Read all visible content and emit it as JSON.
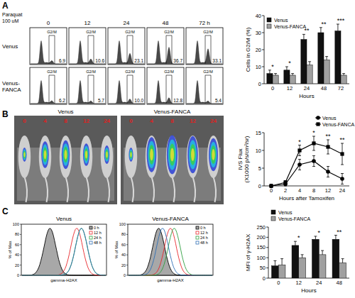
{
  "panels": [
    {
      "label": "A",
      "treatment": [
        "Paraquat",
        "100 uM"
      ],
      "columns": [
        "0",
        "12",
        "24",
        "48",
        "72 h"
      ],
      "gate_label": "G2/M",
      "rows": [
        {
          "name": "Venus",
          "percentages": [
            "6.9",
            "10.6",
            "23.1",
            "36.7",
            "33.1"
          ]
        },
        {
          "name": "Venus-FANCA",
          "percentages": [
            "6.2",
            "5.7",
            "10.0",
            "12.8",
            "5.4"
          ]
        }
      ]
    },
    {
      "label": "B",
      "groups": [
        {
          "name": "Venus",
          "time_labels": [
            "0",
            "4",
            "8",
            "12",
            "24"
          ]
        },
        {
          "name": "Venus-FANCA",
          "time_labels": [
            "0",
            "4",
            "8",
            "12",
            "24"
          ]
        }
      ]
    },
    {
      "label": "C",
      "groups": [
        {
          "name": "Venus"
        },
        {
          "name": "Venus-FANCA"
        }
      ],
      "x_label": "gamma-H2AX",
      "y_label": "% of Max",
      "yticks": [
        0,
        20,
        40,
        60,
        80,
        100
      ],
      "legend_entries": [
        {
          "name": "0 h",
          "color": "#000000"
        },
        {
          "name": "12 h",
          "color": "#e8262a"
        },
        {
          "name": "24 h",
          "color": "#2e9e3e"
        },
        {
          "name": "48 h",
          "color": "#2f6fb5"
        }
      ]
    }
  ],
  "chart_data": [
    {
      "type": "bar",
      "y_label": "Cells in G2/M (%)",
      "x_label": "Hours",
      "categories": [
        "0",
        "12",
        "24",
        "48",
        "72"
      ],
      "series": [
        {
          "name": "Venus",
          "color": "#111111",
          "values": [
            6,
            8,
            26,
            30,
            31
          ],
          "errors": [
            2,
            2,
            3,
            3,
            4
          ]
        },
        {
          "name": "Venus-FANCA",
          "color": "#a0a0a0",
          "values": [
            5,
            5,
            11,
            14,
            5
          ],
          "errors": [
            1,
            1,
            2,
            2,
            1
          ]
        }
      ],
      "ylim": [
        0,
        40
      ],
      "yticks": [
        0,
        10,
        20,
        30,
        40
      ],
      "annotations": [
        "*",
        "*",
        "**",
        "**",
        "***"
      ],
      "legend": "upper left"
    },
    {
      "type": "line",
      "y_label": [
        "IVS Flux",
        "(X1000 p/s/cm²/sr)"
      ],
      "x_label": "Hours after Tamoxifen",
      "categories": [
        "0",
        "2",
        "4",
        "8",
        "12",
        "24"
      ],
      "series": [
        {
          "name": "Venus",
          "color": "#000000",
          "marker": "circle",
          "values": [
            0,
            0.5,
            6,
            7,
            4,
            2
          ],
          "errors": [
            0.5,
            0.5,
            1.5,
            1.5,
            1.5,
            1.5
          ]
        },
        {
          "name": "Venus-FANCA",
          "color": "#000000",
          "marker": "square",
          "values": [
            0,
            1,
            10,
            12,
            11,
            9
          ],
          "errors": [
            0.5,
            0.5,
            1.5,
            2,
            2,
            3
          ]
        }
      ],
      "ylim": [
        0,
        15
      ],
      "yticks": [
        0,
        5,
        10,
        15
      ],
      "annotations": [
        null,
        null,
        "*",
        "*",
        "**",
        "**"
      ],
      "legend": "top right"
    },
    {
      "type": "bar",
      "y_label": "MFI of γ-H2AX",
      "x_label": "Hours",
      "categories": [
        "0",
        "12",
        "24",
        "48"
      ],
      "series": [
        {
          "name": "Venus",
          "color": "#111111",
          "values": [
            60,
            160,
            190,
            190
          ],
          "errors": [
            25,
            20,
            15,
            20
          ]
        },
        {
          "name": "Venus-FANCA",
          "color": "#a0a0a0",
          "values": [
            65,
            100,
            115,
            75
          ],
          "errors": [
            30,
            15,
            20,
            20
          ]
        }
      ],
      "ylim": [
        0,
        250
      ],
      "yticks": [
        0,
        50,
        100,
        150,
        200,
        250
      ],
      "annotations": [
        null,
        "*",
        "*",
        "**"
      ],
      "legend": "top left"
    }
  ]
}
